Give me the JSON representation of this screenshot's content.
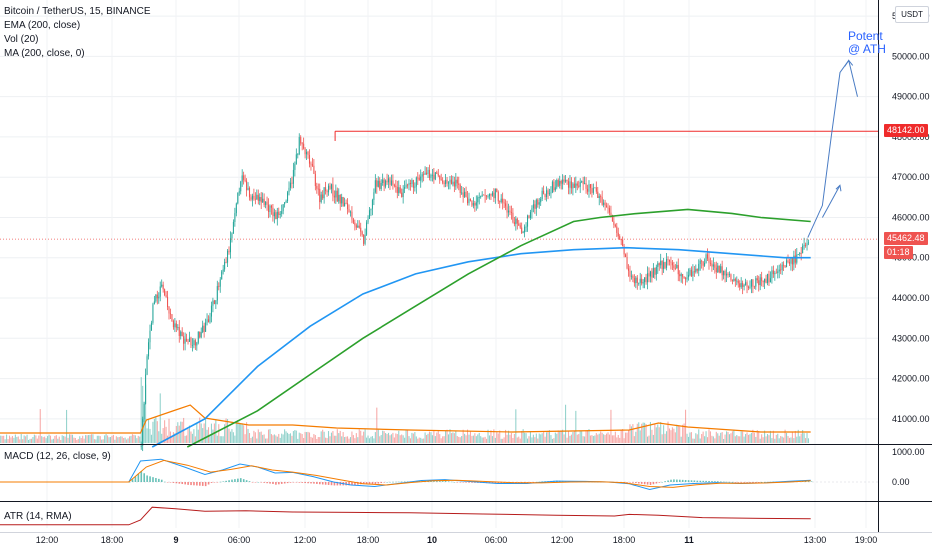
{
  "header": {
    "symbol": "Bitcoin / TetherUS, 15, BINANCE",
    "indicators": [
      "EMA (200, close)",
      "Vol (20)",
      "MA (200, close, 0)"
    ]
  },
  "currency_button": "USDT",
  "annotation": {
    "line1": "Potent",
    "line2": "@ ATH"
  },
  "tags": {
    "resistance": "48142.00",
    "last_price": "45462.48",
    "countdown": "01:18"
  },
  "panes": {
    "macd_label": "MACD (12, 26, close, 9)",
    "atr_label": "ATR (14, RMA)"
  },
  "colors": {
    "up": "#26a69a",
    "down": "#ef5350",
    "ema": "#2196f3",
    "ma": "#2ca02c",
    "vol_ma": "#f57c00",
    "macd": "#2196f3",
    "signal": "#f57c00",
    "atr": "#b71c1c",
    "resistance": "#ef2b2b",
    "projection": "#4a7cc4"
  },
  "chart_data": {
    "type": "candlestick",
    "price_axis": {
      "ticks": [
        "51000.00",
        "50000.00",
        "49000.00",
        "48000.00",
        "47000.00",
        "46000.00",
        "45000.00",
        "44000.00",
        "43000.00",
        "42000.00",
        "41000.00"
      ],
      "range": [
        40400,
        51400
      ]
    },
    "time_axis": {
      "ticks": [
        {
          "label": "12:00",
          "bold": false
        },
        {
          "label": "18:00",
          "bold": false
        },
        {
          "label": "9",
          "bold": true
        },
        {
          "label": "06:00",
          "bold": false
        },
        {
          "label": "12:00",
          "bold": false
        },
        {
          "label": "18:00",
          "bold": false
        },
        {
          "label": "10",
          "bold": true
        },
        {
          "label": "06:00",
          "bold": false
        },
        {
          "label": "12:00",
          "bold": false
        },
        {
          "label": "18:00",
          "bold": false
        },
        {
          "label": "11",
          "bold": true
        },
        {
          "label": "13:00",
          "bold": false
        },
        {
          "label": "19:00",
          "bold": false
        }
      ]
    },
    "close_path": [
      [
        0,
        40300
      ],
      [
        88,
        40300
      ],
      [
        96,
        40300
      ],
      [
        100,
        42600
      ],
      [
        104,
        43800
      ],
      [
        110,
        44300
      ],
      [
        116,
        43500
      ],
      [
        124,
        43000
      ],
      [
        132,
        42900
      ],
      [
        140,
        43300
      ],
      [
        150,
        44400
      ],
      [
        156,
        45200
      ],
      [
        160,
        46000
      ],
      [
        164,
        47000
      ],
      [
        172,
        46500
      ],
      [
        180,
        46400
      ],
      [
        188,
        46000
      ],
      [
        196,
        46500
      ],
      [
        200,
        47100
      ],
      [
        204,
        47900
      ],
      [
        212,
        47300
      ],
      [
        218,
        46500
      ],
      [
        224,
        46800
      ],
      [
        230,
        46500
      ],
      [
        238,
        46200
      ],
      [
        248,
        45400
      ],
      [
        256,
        46800
      ],
      [
        264,
        46900
      ],
      [
        274,
        46600
      ],
      [
        284,
        46900
      ],
      [
        294,
        47100
      ],
      [
        302,
        46900
      ],
      [
        312,
        46800
      ],
      [
        322,
        46300
      ],
      [
        330,
        46500
      ],
      [
        338,
        46600
      ],
      [
        348,
        46100
      ],
      [
        356,
        45600
      ],
      [
        364,
        46300
      ],
      [
        374,
        46700
      ],
      [
        384,
        46900
      ],
      [
        394,
        46800
      ],
      [
        404,
        46700
      ],
      [
        410,
        46500
      ],
      [
        416,
        46100
      ],
      [
        424,
        45500
      ],
      [
        430,
        44500
      ],
      [
        436,
        44400
      ],
      [
        442,
        44500
      ],
      [
        450,
        44800
      ],
      [
        458,
        44900
      ],
      [
        466,
        44500
      ],
      [
        474,
        44700
      ],
      [
        482,
        45000
      ],
      [
        488,
        44800
      ],
      [
        498,
        44500
      ],
      [
        506,
        44300
      ],
      [
        514,
        44400
      ],
      [
        522,
        44400
      ],
      [
        530,
        44700
      ],
      [
        538,
        44900
      ],
      [
        546,
        45000
      ],
      [
        552,
        45500
      ]
    ],
    "resistance": 48142,
    "last_price": 45462.48,
    "ema_200": [
      [
        104,
        40300
      ],
      [
        140,
        41000
      ],
      [
        176,
        42300
      ],
      [
        212,
        43300
      ],
      [
        248,
        44100
      ],
      [
        284,
        44600
      ],
      [
        320,
        44900
      ],
      [
        356,
        45100
      ],
      [
        392,
        45200
      ],
      [
        428,
        45250
      ],
      [
        464,
        45200
      ],
      [
        500,
        45100
      ],
      [
        536,
        45000
      ],
      [
        554,
        45000
      ]
    ],
    "ma_200": [
      [
        128,
        40300
      ],
      [
        176,
        41200
      ],
      [
        212,
        42100
      ],
      [
        248,
        43000
      ],
      [
        284,
        43800
      ],
      [
        320,
        44600
      ],
      [
        356,
        45300
      ],
      [
        392,
        45900
      ],
      [
        410,
        46000
      ],
      [
        436,
        46100
      ],
      [
        470,
        46200
      ],
      [
        500,
        46100
      ],
      [
        520,
        46000
      ],
      [
        554,
        45900
      ]
    ],
    "projection": {
      "start": [
        552,
        45500
      ],
      "path": [
        [
          552,
          45500
        ],
        [
          562,
          46300
        ],
        [
          568,
          48000
        ],
        [
          574,
          49600
        ],
        [
          580,
          49900
        ],
        [
          586,
          49000
        ]
      ],
      "branch": [
        [
          562,
          46000
        ],
        [
          574,
          46800
        ]
      ]
    },
    "macd_axis": {
      "ticks": [
        "1000.00",
        "0.00"
      ],
      "range": [
        -600,
        1200
      ]
    },
    "macd": {
      "macd_line": [
        [
          0,
          0
        ],
        [
          88,
          0
        ],
        [
          96,
          700
        ],
        [
          110,
          760
        ],
        [
          126,
          500
        ],
        [
          140,
          250
        ],
        [
          152,
          400
        ],
        [
          164,
          600
        ],
        [
          176,
          500
        ],
        [
          188,
          300
        ],
        [
          200,
          320
        ],
        [
          214,
          180
        ],
        [
          228,
          0
        ],
        [
          240,
          -100
        ],
        [
          256,
          -150
        ],
        [
          272,
          -50
        ],
        [
          288,
          50
        ],
        [
          304,
          80
        ],
        [
          320,
          20
        ],
        [
          340,
          -50
        ],
        [
          360,
          -50
        ],
        [
          380,
          30
        ],
        [
          400,
          20
        ],
        [
          416,
          0
        ],
        [
          430,
          -60
        ],
        [
          444,
          -250
        ],
        [
          458,
          -100
        ],
        [
          474,
          -50
        ],
        [
          490,
          -20
        ],
        [
          506,
          -50
        ],
        [
          522,
          -30
        ],
        [
          538,
          20
        ],
        [
          554,
          60
        ]
      ],
      "signal_line": [
        [
          0,
          0
        ],
        [
          88,
          0
        ],
        [
          100,
          500
        ],
        [
          112,
          720
        ],
        [
          128,
          560
        ],
        [
          144,
          330
        ],
        [
          158,
          420
        ],
        [
          172,
          540
        ],
        [
          186,
          400
        ],
        [
          200,
          330
        ],
        [
          216,
          220
        ],
        [
          232,
          80
        ],
        [
          248,
          -60
        ],
        [
          264,
          -100
        ],
        [
          280,
          -20
        ],
        [
          296,
          40
        ],
        [
          312,
          60
        ],
        [
          330,
          20
        ],
        [
          350,
          -20
        ],
        [
          370,
          -30
        ],
        [
          390,
          0
        ],
        [
          410,
          10
        ],
        [
          426,
          -20
        ],
        [
          444,
          -150
        ],
        [
          460,
          -180
        ],
        [
          476,
          -90
        ],
        [
          492,
          -40
        ],
        [
          508,
          -40
        ],
        [
          524,
          -30
        ],
        [
          540,
          0
        ],
        [
          554,
          40
        ]
      ]
    },
    "atr": [
      [
        0,
        40
      ],
      [
        88,
        40
      ],
      [
        96,
        100
      ],
      [
        104,
        260
      ],
      [
        120,
        240
      ],
      [
        140,
        210
      ],
      [
        168,
        215
      ],
      [
        200,
        200
      ],
      [
        240,
        195
      ],
      [
        280,
        190
      ],
      [
        330,
        175
      ],
      [
        380,
        160
      ],
      [
        420,
        150
      ],
      [
        430,
        170
      ],
      [
        450,
        160
      ],
      [
        480,
        130
      ],
      [
        520,
        120
      ],
      [
        554,
        115
      ]
    ],
    "atr_range": [
      0,
      300
    ]
  }
}
